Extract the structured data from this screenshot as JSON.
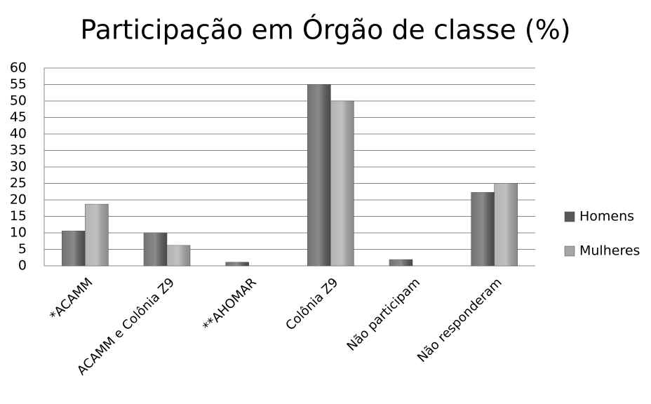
{
  "chart_data": {
    "type": "bar",
    "title": "Participação em Órgão de classe (%)",
    "categories": [
      "*ACAMM",
      "ACAMM e Colônia Z9",
      "**AHOMAR",
      "Colônia Z9",
      "Não participam",
      "Não responderam"
    ],
    "series": [
      {
        "name": "Homens",
        "color": "#595959",
        "values": [
          10.6,
          10,
          1.1,
          55,
          1.9,
          22.3
        ]
      },
      {
        "name": "Mulheres",
        "color": "#a6a6a6",
        "values": [
          18.7,
          6.2,
          0,
          50,
          0,
          25
        ]
      }
    ],
    "ylim": [
      0,
      60
    ],
    "yticks": [
      0,
      5,
      10,
      15,
      20,
      25,
      30,
      35,
      40,
      45,
      50,
      55,
      60
    ],
    "grid": true,
    "legend": "right"
  }
}
